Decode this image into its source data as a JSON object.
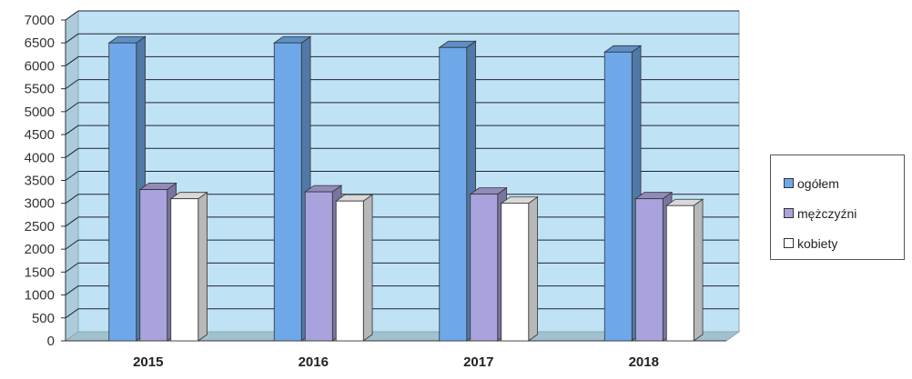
{
  "chart_data": {
    "type": "bar",
    "categories": [
      "2015",
      "2016",
      "2017",
      "2018"
    ],
    "series": [
      {
        "name": "ogółem",
        "values": [
          6500,
          6500,
          6400,
          6300
        ],
        "color": "#6fa8e8"
      },
      {
        "name": "mężczyźni",
        "values": [
          3300,
          3250,
          3200,
          3100
        ],
        "color": "#a9a3dd"
      },
      {
        "name": "kobiety",
        "values": [
          3100,
          3050,
          3000,
          2950
        ],
        "color": "#ffffff"
      }
    ],
    "ylim": [
      0,
      7000
    ],
    "yticks": [
      "0",
      "500",
      "1000",
      "1500",
      "2000",
      "2500",
      "3000",
      "3500",
      "4000",
      "4500",
      "5000",
      "5500",
      "6000",
      "6500",
      "7000"
    ],
    "plot_background": "#bfe3f5",
    "grid": true,
    "legend_position": "right"
  }
}
